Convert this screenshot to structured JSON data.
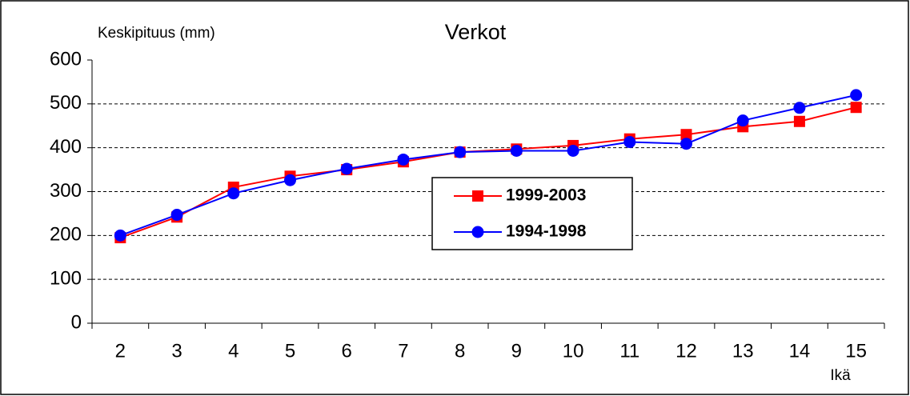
{
  "chart_data": {
    "type": "line",
    "title": "Verkot",
    "y_label": "Keskipituus (mm)",
    "x_label": "Ikä",
    "categories": [
      "2",
      "3",
      "4",
      "5",
      "6",
      "7",
      "8",
      "9",
      "10",
      "11",
      "12",
      "13",
      "14",
      "15"
    ],
    "series": [
      {
        "name": "1999-2003",
        "color": "#ff0000",
        "marker": "square",
        "values": [
          195,
          242,
          310,
          335,
          350,
          368,
          390,
          397,
          405,
          420,
          430,
          448,
          460,
          492
        ]
      },
      {
        "name": "1994-1998",
        "color": "#0000ff",
        "marker": "circle",
        "values": [
          200,
          247,
          296,
          326,
          352,
          373,
          390,
          393,
          393,
          413,
          409,
          462,
          491,
          520
        ]
      }
    ],
    "ylim": [
      0,
      600
    ],
    "yticks": [
      0,
      100,
      200,
      300,
      400,
      500,
      600
    ],
    "grid": true
  }
}
